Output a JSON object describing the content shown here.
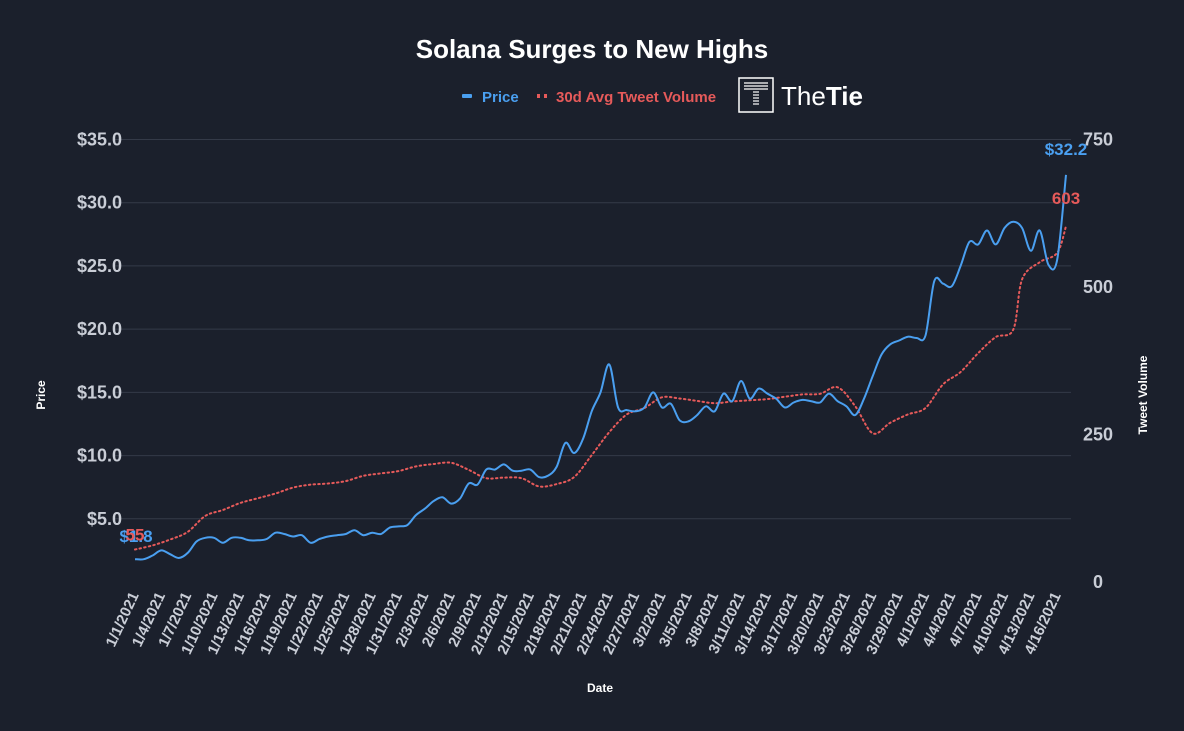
{
  "chart_data": {
    "type": "line",
    "title": "Solana Surges to New Highs",
    "xlabel": "Date",
    "ylabel_left": "Price",
    "ylabel_right": "Tweet Volume",
    "y_left_ticks": [
      "$5.0",
      "$10.0",
      "$15.0",
      "$20.0",
      "$25.0",
      "$30.0",
      "$35.0"
    ],
    "y_right_ticks": [
      "0",
      "250",
      "500",
      "750"
    ],
    "ylim_left": [
      0,
      35
    ],
    "ylim_right": [
      0,
      750
    ],
    "x_tick_labels": [
      "1/1/2021",
      "1/4/2021",
      "1/7/2021",
      "1/10/2021",
      "1/13/2021",
      "1/16/2021",
      "1/19/2021",
      "1/22/2021",
      "1/25/2021",
      "1/28/2021",
      "1/31/2021",
      "2/3/2021",
      "2/6/2021",
      "2/9/2021",
      "2/12/2021",
      "2/15/2021",
      "2/18/2021",
      "2/21/2021",
      "2/24/2021",
      "2/27/2021",
      "3/2/2021",
      "3/5/2021",
      "3/8/2021",
      "3/11/2021",
      "3/14/2021",
      "3/17/2021",
      "3/20/2021",
      "3/23/2021",
      "3/26/2021",
      "3/29/2021",
      "4/1/2021",
      "4/4/2021",
      "4/7/2021",
      "4/10/2021",
      "4/13/2021",
      "4/16/2021"
    ],
    "x_start_date": "2021-01-01",
    "grid": true,
    "legend_position": "top-center",
    "series": [
      {
        "name": "Price",
        "axis": "left",
        "color": "#4a9ff0",
        "style": "solid",
        "start_label": "$1.8",
        "end_label": "$32.2",
        "points": [
          [
            "1/1/2021",
            1.8
          ],
          [
            "1/2/2021",
            1.8
          ],
          [
            "1/3/2021",
            2.1
          ],
          [
            "1/4/2021",
            2.5
          ],
          [
            "1/5/2021",
            2.2
          ],
          [
            "1/6/2021",
            1.9
          ],
          [
            "1/7/2021",
            2.3
          ],
          [
            "1/8/2021",
            3.2
          ],
          [
            "1/9/2021",
            3.5
          ],
          [
            "1/10/2021",
            3.5
          ],
          [
            "1/11/2021",
            3.1
          ],
          [
            "1/12/2021",
            3.5
          ],
          [
            "1/13/2021",
            3.5
          ],
          [
            "1/14/2021",
            3.3
          ],
          [
            "1/15/2021",
            3.3
          ],
          [
            "1/16/2021",
            3.4
          ],
          [
            "1/17/2021",
            3.9
          ],
          [
            "1/18/2021",
            3.8
          ],
          [
            "1/19/2021",
            3.6
          ],
          [
            "1/20/2021",
            3.7
          ],
          [
            "1/21/2021",
            3.1
          ],
          [
            "1/22/2021",
            3.4
          ],
          [
            "1/23/2021",
            3.6
          ],
          [
            "1/24/2021",
            3.7
          ],
          [
            "1/25/2021",
            3.8
          ],
          [
            "1/26/2021",
            4.1
          ],
          [
            "1/27/2021",
            3.7
          ],
          [
            "1/28/2021",
            3.9
          ],
          [
            "1/29/2021",
            3.8
          ],
          [
            "1/30/2021",
            4.3
          ],
          [
            "1/31/2021",
            4.4
          ],
          [
            "2/1/2021",
            4.5
          ],
          [
            "2/2/2021",
            5.3
          ],
          [
            "2/3/2021",
            5.8
          ],
          [
            "2/4/2021",
            6.4
          ],
          [
            "2/5/2021",
            6.7
          ],
          [
            "2/6/2021",
            6.2
          ],
          [
            "2/7/2021",
            6.6
          ],
          [
            "2/8/2021",
            7.8
          ],
          [
            "2/9/2021",
            7.7
          ],
          [
            "2/10/2021",
            8.9
          ],
          [
            "2/11/2021",
            8.9
          ],
          [
            "2/12/2021",
            9.3
          ],
          [
            "2/13/2021",
            8.8
          ],
          [
            "2/14/2021",
            8.8
          ],
          [
            "2/15/2021",
            8.9
          ],
          [
            "2/16/2021",
            8.3
          ],
          [
            "2/17/2021",
            8.4
          ],
          [
            "2/18/2021",
            9.1
          ],
          [
            "2/19/2021",
            11.0
          ],
          [
            "2/20/2021",
            10.2
          ],
          [
            "2/21/2021",
            11.3
          ],
          [
            "2/22/2021",
            13.5
          ],
          [
            "2/23/2021",
            15.0
          ],
          [
            "2/24/2021",
            17.2
          ],
          [
            "2/25/2021",
            13.8
          ],
          [
            "2/26/2021",
            13.6
          ],
          [
            "2/27/2021",
            13.5
          ],
          [
            "2/28/2021",
            13.8
          ],
          [
            "3/1/2021",
            15.0
          ],
          [
            "3/2/2021",
            13.8
          ],
          [
            "3/3/2021",
            14.1
          ],
          [
            "3/4/2021",
            12.8
          ],
          [
            "3/5/2021",
            12.7
          ],
          [
            "3/6/2021",
            13.2
          ],
          [
            "3/7/2021",
            13.9
          ],
          [
            "3/8/2021",
            13.5
          ],
          [
            "3/9/2021",
            14.9
          ],
          [
            "3/10/2021",
            14.3
          ],
          [
            "3/11/2021",
            15.9
          ],
          [
            "3/12/2021",
            14.5
          ],
          [
            "3/13/2021",
            15.3
          ],
          [
            "3/14/2021",
            14.9
          ],
          [
            "3/15/2021",
            14.5
          ],
          [
            "3/16/2021",
            13.8
          ],
          [
            "3/17/2021",
            14.2
          ],
          [
            "3/18/2021",
            14.4
          ],
          [
            "3/19/2021",
            14.3
          ],
          [
            "3/20/2021",
            14.2
          ],
          [
            "3/21/2021",
            14.9
          ],
          [
            "3/22/2021",
            14.3
          ],
          [
            "3/23/2021",
            13.9
          ],
          [
            "3/24/2021",
            13.2
          ],
          [
            "3/25/2021",
            14.5
          ],
          [
            "3/26/2021",
            16.3
          ],
          [
            "3/27/2021",
            18.0
          ],
          [
            "3/28/2021",
            18.8
          ],
          [
            "3/29/2021",
            19.1
          ],
          [
            "3/30/2021",
            19.4
          ],
          [
            "3/31/2021",
            19.3
          ],
          [
            "4/1/2021",
            19.5
          ],
          [
            "4/2/2021",
            23.8
          ],
          [
            "4/3/2021",
            23.6
          ],
          [
            "4/4/2021",
            23.4
          ],
          [
            "4/5/2021",
            25.0
          ],
          [
            "4/6/2021",
            26.9
          ],
          [
            "4/7/2021",
            26.7
          ],
          [
            "4/8/2021",
            27.8
          ],
          [
            "4/9/2021",
            26.7
          ],
          [
            "4/10/2021",
            28.0
          ],
          [
            "4/11/2021",
            28.5
          ],
          [
            "4/12/2021",
            28.0
          ],
          [
            "4/13/2021",
            26.2
          ],
          [
            "4/14/2021",
            27.8
          ],
          [
            "4/15/2021",
            25.1
          ],
          [
            "4/16/2021",
            25.5
          ],
          [
            "4/17/2021",
            32.2
          ]
        ]
      },
      {
        "name": "30d Avg Tweet Volume",
        "axis": "right",
        "color": "#e65a5a",
        "style": "dotted",
        "start_label": "55",
        "end_label": "603",
        "points": [
          [
            "1/1/2021",
            55
          ],
          [
            "1/3/2021",
            62
          ],
          [
            "1/5/2021",
            72
          ],
          [
            "1/7/2021",
            85
          ],
          [
            "1/9/2021",
            112
          ],
          [
            "1/11/2021",
            122
          ],
          [
            "1/13/2021",
            134
          ],
          [
            "1/15/2021",
            142
          ],
          [
            "1/17/2021",
            150
          ],
          [
            "1/19/2021",
            160
          ],
          [
            "1/21/2021",
            165
          ],
          [
            "1/23/2021",
            167
          ],
          [
            "1/25/2021",
            171
          ],
          [
            "1/27/2021",
            180
          ],
          [
            "1/29/2021",
            184
          ],
          [
            "1/31/2021",
            188
          ],
          [
            "2/2/2021",
            196
          ],
          [
            "2/4/2021",
            200
          ],
          [
            "2/6/2021",
            202
          ],
          [
            "2/8/2021",
            190
          ],
          [
            "2/10/2021",
            176
          ],
          [
            "2/12/2021",
            177
          ],
          [
            "2/14/2021",
            176
          ],
          [
            "2/16/2021",
            162
          ],
          [
            "2/18/2021",
            166
          ],
          [
            "2/20/2021",
            178
          ],
          [
            "2/22/2021",
            215
          ],
          [
            "2/24/2021",
            254
          ],
          [
            "2/26/2021",
            284
          ],
          [
            "2/28/2021",
            295
          ],
          [
            "3/2/2021",
            313
          ],
          [
            "3/4/2021",
            311
          ],
          [
            "3/6/2021",
            307
          ],
          [
            "3/8/2021",
            303
          ],
          [
            "3/10/2021",
            306
          ],
          [
            "3/12/2021",
            308
          ],
          [
            "3/14/2021",
            310
          ],
          [
            "3/16/2021",
            314
          ],
          [
            "3/18/2021",
            318
          ],
          [
            "3/20/2021",
            319
          ],
          [
            "3/22/2021",
            330
          ],
          [
            "3/24/2021",
            298
          ],
          [
            "3/26/2021",
            252
          ],
          [
            "3/28/2021",
            270
          ],
          [
            "3/30/2021",
            284
          ],
          [
            "4/1/2021",
            295
          ],
          [
            "4/3/2021",
            335
          ],
          [
            "4/5/2021",
            356
          ],
          [
            "4/7/2021",
            388
          ],
          [
            "4/9/2021",
            415
          ],
          [
            "4/11/2021",
            428
          ],
          [
            "4/12/2021",
            513
          ],
          [
            "4/14/2021",
            542
          ],
          [
            "4/16/2021",
            558
          ],
          [
            "4/17/2021",
            603
          ]
        ]
      }
    ]
  },
  "brand": {
    "name_light": "The",
    "name_bold": "Tie"
  }
}
